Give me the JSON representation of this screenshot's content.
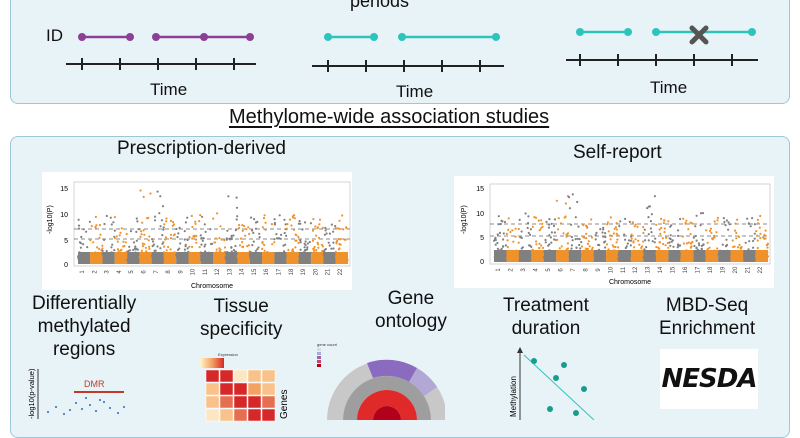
{
  "top_panel": {
    "title_fragment": "periods",
    "id_label": "ID",
    "time_label": "Time"
  },
  "section_title": "Methylome-wide association studies",
  "manhattan_left": {
    "title": "Prescription-derived",
    "ylabel": "-log10(P)",
    "xlabel": "Chromosome",
    "y_ticks": [
      "15",
      "10",
      "5",
      "0"
    ]
  },
  "manhattan_right": {
    "title": "Self-report",
    "ylabel": "-log10(P)",
    "xlabel": "Chromosome",
    "y_ticks": [
      "15",
      "10",
      "5",
      "0"
    ]
  },
  "chromosomes": [
    "1",
    "2",
    "3",
    "4",
    "5",
    "6",
    "7",
    "8",
    "9",
    "10",
    "11",
    "12",
    "13",
    "14",
    "15",
    "16",
    "17",
    "18",
    "19",
    "20",
    "21",
    "22"
  ],
  "bottom": {
    "dmr": {
      "title_lines": [
        "Differentially",
        "methylated",
        "regions"
      ],
      "axis": "-log10(p-value)",
      "tag": "DMR"
    },
    "tissue": {
      "title_lines": [
        "Tissue",
        "specificity"
      ],
      "legend": "Expression",
      "axis": "Genes"
    },
    "go": {
      "title_lines": [
        "Gene",
        "ontology"
      ],
      "legend_title": "gene count"
    },
    "treatment": {
      "title_lines": [
        "Treatment",
        "duration"
      ],
      "axis": "Methylation"
    },
    "mbd": {
      "title_lines": [
        "MBD-Seq",
        "Enrichment"
      ],
      "logo": "NESDA"
    }
  },
  "colors": {
    "panel_bg": "#e8f3f7",
    "panel_border": "#9ec7d6",
    "purple": "#8b3f96",
    "teal": "#2ec4be",
    "orange": "#f0922b",
    "grey": "#808080",
    "dark_teal": "#1a9b8f",
    "red": "#c0392b"
  },
  "icons": [
    "cross-icon"
  ]
}
